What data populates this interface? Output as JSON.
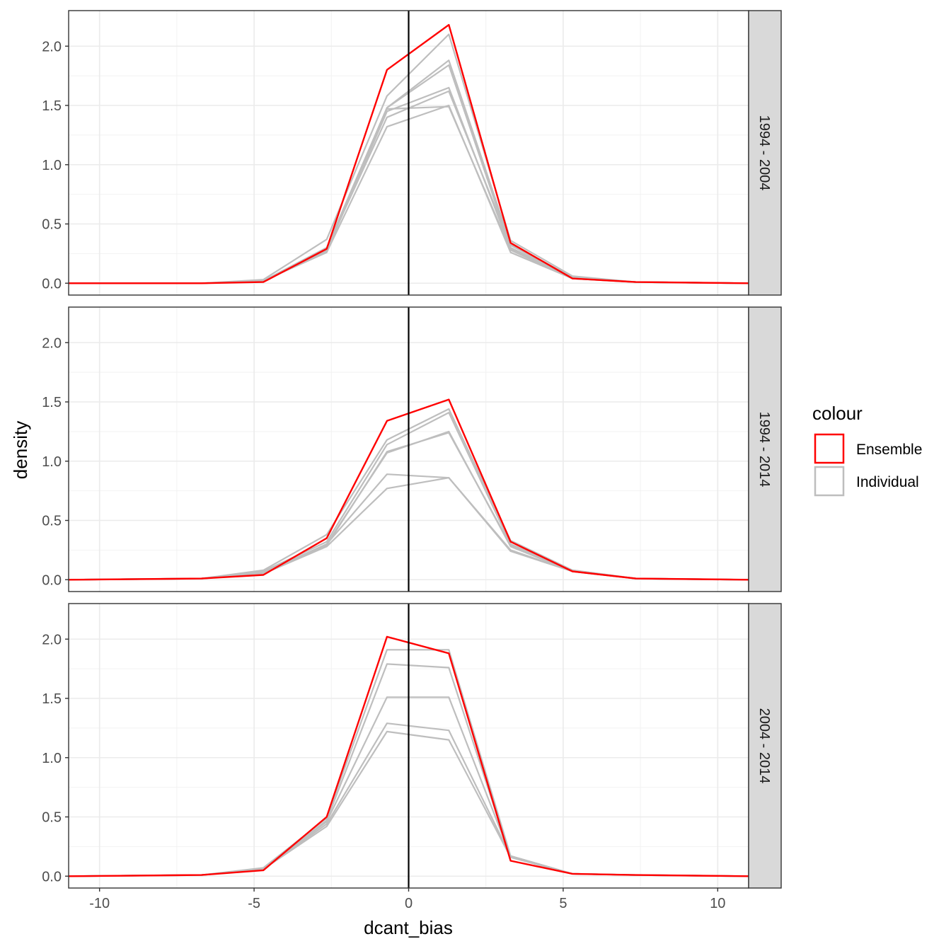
{
  "chart_data": {
    "type": "line",
    "xlabel": "dcant_bias",
    "ylabel": "density",
    "xlim": [
      -11,
      11
    ],
    "ylim": [
      -0.1,
      2.3
    ],
    "x_ticks": [
      -10,
      -5,
      0,
      5,
      10
    ],
    "x_tick_labels": [
      "-10",
      "-5",
      "0",
      "5",
      "10"
    ],
    "y_ticks": [
      0,
      0.5,
      1,
      1.5,
      2
    ],
    "y_tick_labels": [
      "0.0",
      "0.5",
      "1.0",
      "1.5",
      "2.0"
    ],
    "vline_x": 0,
    "grid": true,
    "legend": {
      "title": "colour",
      "position": "right",
      "entries": [
        {
          "label": "Ensemble",
          "color": "#ff0000"
        },
        {
          "label": "Individual",
          "color": "#bebebe"
        }
      ]
    },
    "x": [
      -11,
      -6.7,
      -4.7,
      -2.65,
      -0.7,
      1.3,
      3.3,
      5.3,
      7.35,
      11
    ],
    "panels": [
      {
        "strip": "1994 - 2004",
        "ensemble": [
          0,
          0,
          0.01,
          0.29,
          1.8,
          2.18,
          0.34,
          0.04,
          0.01,
          0
        ],
        "individual": [
          [
            0,
            0,
            0.03,
            0.37,
            1.58,
            2.1,
            0.36,
            0.06,
            0.01,
            0
          ],
          [
            0,
            0,
            0.02,
            0.3,
            1.48,
            1.88,
            0.33,
            0.05,
            0.01,
            0
          ],
          [
            0,
            0,
            0.02,
            0.28,
            1.48,
            1.84,
            0.3,
            0.05,
            0.01,
            0
          ],
          [
            0,
            0,
            0.02,
            0.27,
            1.45,
            1.65,
            0.29,
            0.04,
            0.01,
            0
          ],
          [
            0,
            0,
            0.02,
            0.29,
            1.4,
            1.62,
            0.32,
            0.05,
            0.01,
            0
          ],
          [
            0,
            0,
            0.02,
            0.26,
            1.32,
            1.5,
            0.26,
            0.04,
            0.01,
            0
          ],
          [
            0,
            0,
            0.02,
            0.28,
            1.47,
            1.49,
            0.28,
            0.04,
            0.01,
            0
          ]
        ]
      },
      {
        "strip": "1994 - 2014",
        "ensemble": [
          0,
          0.01,
          0.04,
          0.35,
          1.34,
          1.52,
          0.32,
          0.07,
          0.01,
          0
        ],
        "individual": [
          [
            0,
            0.01,
            0.08,
            0.38,
            1.18,
            1.44,
            0.33,
            0.08,
            0.01,
            0
          ],
          [
            0,
            0.01,
            0.07,
            0.32,
            1.14,
            1.41,
            0.3,
            0.08,
            0.01,
            0
          ],
          [
            0,
            0.01,
            0.06,
            0.3,
            1.07,
            1.25,
            0.28,
            0.07,
            0.01,
            0
          ],
          [
            0,
            0.01,
            0.06,
            0.29,
            1.08,
            1.24,
            0.29,
            0.07,
            0.01,
            0
          ],
          [
            0,
            0.01,
            0.05,
            0.3,
            0.89,
            0.86,
            0.25,
            0.07,
            0.01,
            0
          ],
          [
            0,
            0.01,
            0.05,
            0.28,
            0.77,
            0.86,
            0.24,
            0.07,
            0.01,
            0
          ]
        ]
      },
      {
        "strip": "2004 - 2014",
        "ensemble": [
          0,
          0.01,
          0.05,
          0.5,
          2.02,
          1.88,
          0.13,
          0.02,
          0.01,
          0
        ],
        "individual": [
          [
            0,
            0.01,
            0.07,
            0.49,
            1.91,
            1.91,
            0.17,
            0.02,
            0.01,
            0
          ],
          [
            0,
            0.01,
            0.06,
            0.47,
            1.79,
            1.76,
            0.16,
            0.02,
            0.01,
            0
          ],
          [
            0,
            0.01,
            0.06,
            0.46,
            1.51,
            1.51,
            0.17,
            0.02,
            0.01,
            0
          ],
          [
            0,
            0.01,
            0.06,
            0.44,
            1.29,
            1.23,
            0.17,
            0.02,
            0.01,
            0
          ],
          [
            0,
            0.01,
            0.06,
            0.42,
            1.22,
            1.15,
            0.16,
            0.02,
            0.01,
            0
          ]
        ]
      }
    ]
  }
}
